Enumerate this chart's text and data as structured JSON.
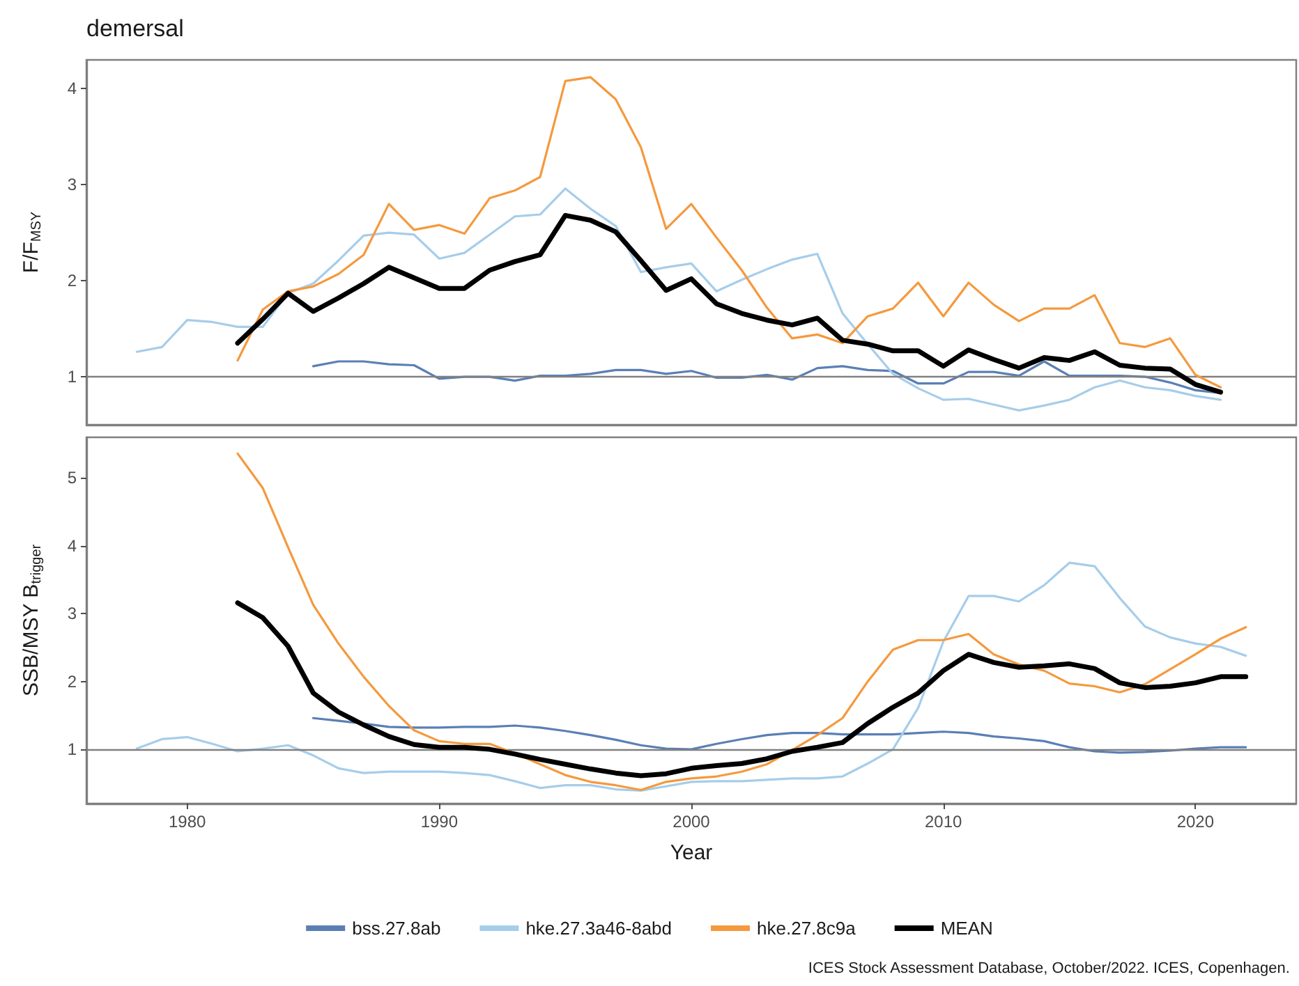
{
  "chart_data": [
    {
      "type": "line",
      "title": "demersal",
      "ylabel": "F/F$_{MSY}$",
      "xlim": [
        1976,
        2024
      ],
      "xticks": [
        1980,
        1990,
        2000,
        2010,
        2020
      ],
      "ylim": [
        0.5,
        4.3
      ],
      "yticks": [
        1,
        2,
        3,
        4
      ],
      "tick_labels": "y",
      "grid": false,
      "legend": false,
      "ref_lines": [
        {
          "axis": "y",
          "value": 1,
          "color": "#808080"
        }
      ],
      "series": [
        {
          "color": "#5a7fb5",
          "x": [
            1985,
            1986,
            1987,
            1988,
            1989,
            1990,
            1991,
            1992,
            1993,
            1994,
            1995,
            1996,
            1997,
            1998,
            1999,
            2000,
            2001,
            2002,
            2003,
            2004,
            2005,
            2006,
            2007,
            2008,
            2009,
            2010,
            2011,
            2012,
            2013,
            2014,
            2015,
            2016,
            2017,
            2018,
            2019,
            2020,
            2021
          ],
          "values": [
            1.11,
            1.16,
            1.16,
            1.13,
            1.12,
            0.98,
            1.0,
            1.0,
            0.96,
            1.01,
            1.01,
            1.03,
            1.07,
            1.07,
            1.03,
            1.06,
            0.99,
            0.99,
            1.02,
            0.97,
            1.09,
            1.11,
            1.07,
            1.06,
            0.93,
            0.93,
            1.05,
            1.05,
            1.01,
            1.16,
            1.01,
            1.01,
            1.01,
            1.0,
            0.94,
            0.86,
            0.83
          ]
        },
        {
          "color": "#a6cdea",
          "x": [
            1978,
            1979,
            1980,
            1981,
            1982,
            1983,
            1984,
            1985,
            1986,
            1987,
            1988,
            1989,
            1990,
            1991,
            1992,
            1993,
            1994,
            1995,
            1996,
            1997,
            1998,
            1999,
            2000,
            2001,
            2002,
            2003,
            2004,
            2005,
            2006,
            2007,
            2008,
            2009,
            2010,
            2011,
            2012,
            2013,
            2014,
            2015,
            2016,
            2017,
            2018,
            2019,
            2020,
            2021
          ],
          "values": [
            1.26,
            1.31,
            1.59,
            1.57,
            1.52,
            1.52,
            1.87,
            1.97,
            2.21,
            2.47,
            2.5,
            2.48,
            2.23,
            2.29,
            2.48,
            2.67,
            2.69,
            2.96,
            2.75,
            2.57,
            2.09,
            2.14,
            2.18,
            1.89,
            2.01,
            2.12,
            2.22,
            2.28,
            1.66,
            1.34,
            1.03,
            0.88,
            0.76,
            0.77,
            0.71,
            0.65,
            0.7,
            0.76,
            0.89,
            0.96,
            0.89,
            0.86,
            0.8,
            0.76
          ]
        },
        {
          "color": "#f5993d",
          "x": [
            1982,
            1983,
            1984,
            1985,
            1986,
            1987,
            1988,
            1989,
            1990,
            1991,
            1992,
            1993,
            1994,
            1995,
            1996,
            1997,
            1998,
            1999,
            2000,
            2001,
            2002,
            2003,
            2004,
            2005,
            2006,
            2007,
            2008,
            2009,
            2010,
            2011,
            2012,
            2013,
            2014,
            2015,
            2016,
            2017,
            2018,
            2019,
            2020,
            2021
          ],
          "values": [
            1.17,
            1.7,
            1.89,
            1.94,
            2.07,
            2.27,
            2.8,
            2.53,
            2.58,
            2.49,
            2.86,
            2.94,
            3.08,
            4.08,
            4.12,
            3.89,
            3.39,
            2.54,
            2.8,
            2.45,
            2.11,
            1.72,
            1.4,
            1.44,
            1.35,
            1.63,
            1.71,
            1.98,
            1.63,
            1.98,
            1.75,
            1.58,
            1.71,
            1.71,
            1.85,
            1.35,
            1.31,
            1.4,
            1.02,
            0.89
          ]
        },
        {
          "color": "#000000",
          "x": [
            1982,
            1983,
            1984,
            1985,
            1986,
            1987,
            1988,
            1989,
            1990,
            1991,
            1992,
            1993,
            1994,
            1995,
            1996,
            1997,
            1998,
            1999,
            2000,
            2001,
            2002,
            2003,
            2004,
            2005,
            2006,
            2007,
            2008,
            2009,
            2010,
            2011,
            2012,
            2013,
            2014,
            2015,
            2016,
            2017,
            2018,
            2019,
            2020,
            2021
          ],
          "values": [
            1.35,
            1.6,
            1.87,
            1.68,
            1.82,
            1.97,
            2.14,
            2.03,
            1.92,
            1.92,
            2.11,
            2.2,
            2.27,
            2.68,
            2.63,
            2.51,
            2.21,
            1.9,
            2.02,
            1.76,
            1.66,
            1.59,
            1.54,
            1.61,
            1.38,
            1.34,
            1.27,
            1.27,
            1.11,
            1.28,
            1.18,
            1.09,
            1.2,
            1.17,
            1.26,
            1.12,
            1.09,
            1.08,
            0.92,
            0.84
          ]
        }
      ]
    },
    {
      "type": "line",
      "xlabel": "Year",
      "ylabel": "SSB/MSY B$_{trigger}$",
      "xlim": [
        1976,
        2024
      ],
      "xticks": [
        1980,
        1990,
        2000,
        2010,
        2020
      ],
      "ylim": [
        0.2,
        5.6
      ],
      "yticks": [
        1,
        2,
        3,
        4,
        5
      ],
      "grid": false,
      "legend": "bottom",
      "ref_lines": [
        {
          "axis": "y",
          "value": 1,
          "color": "#808080"
        }
      ],
      "annotations": [
        "ICES Stock Assessment Database, October/2022. ICES, Copenhagen."
      ],
      "series": [
        {
          "name": "bss.27.8ab",
          "color": "#5a7fb5",
          "x": [
            1985,
            1986,
            1987,
            1988,
            1989,
            1990,
            1991,
            1992,
            1993,
            1994,
            1995,
            1996,
            1997,
            1998,
            1999,
            2000,
            2001,
            2002,
            2003,
            2004,
            2005,
            2006,
            2007,
            2008,
            2009,
            2010,
            2011,
            2012,
            2013,
            2014,
            2015,
            2016,
            2017,
            2018,
            2019,
            2020,
            2021,
            2022
          ],
          "values": [
            1.46,
            1.42,
            1.38,
            1.33,
            1.32,
            1.32,
            1.33,
            1.33,
            1.35,
            1.32,
            1.27,
            1.21,
            1.14,
            1.06,
            1.01,
            1.0,
            1.08,
            1.15,
            1.21,
            1.24,
            1.24,
            1.22,
            1.22,
            1.22,
            1.24,
            1.26,
            1.24,
            1.19,
            1.16,
            1.12,
            1.03,
            0.97,
            0.95,
            0.96,
            0.98,
            1.01,
            1.03,
            1.03
          ]
        },
        {
          "name": "hke.27.3a46-8abd",
          "color": "#a6cdea",
          "x": [
            1978,
            1979,
            1980,
            1981,
            1982,
            1983,
            1984,
            1985,
            1986,
            1987,
            1988,
            1989,
            1990,
            1991,
            1992,
            1993,
            1994,
            1995,
            1996,
            1997,
            1998,
            2000,
            2001,
            2002,
            2003,
            2004,
            2005,
            2006,
            2007,
            2008,
            2009,
            2010,
            2011,
            2012,
            2013,
            2014,
            2015,
            2016,
            2017,
            2018,
            2019,
            2020,
            2021,
            2022
          ],
          "values": [
            1.01,
            1.15,
            1.18,
            1.08,
            0.97,
            1.01,
            1.06,
            0.91,
            0.72,
            0.65,
            0.67,
            0.67,
            0.67,
            0.65,
            0.62,
            0.53,
            0.43,
            0.47,
            0.47,
            0.41,
            0.39,
            0.52,
            0.53,
            0.53,
            0.55,
            0.57,
            0.57,
            0.6,
            0.79,
            1.0,
            1.61,
            2.59,
            3.26,
            3.26,
            3.18,
            3.42,
            3.75,
            3.7,
            3.23,
            2.81,
            2.65,
            2.56,
            2.51,
            2.38
          ]
        },
        {
          "name": "hke.27.8c9a",
          "color": "#f5993d",
          "x": [
            1982,
            1983,
            1984,
            1985,
            1986,
            1987,
            1988,
            1989,
            1990,
            1991,
            1992,
            1993,
            1994,
            1995,
            1996,
            1997,
            1998,
            1999,
            2000,
            2001,
            2002,
            2003,
            2004,
            2005,
            2006,
            2007,
            2008,
            2009,
            2010,
            2011,
            2012,
            2013,
            2014,
            2015,
            2016,
            2017,
            2018,
            2019,
            2020,
            2021,
            2022
          ],
          "values": [
            5.36,
            4.85,
            3.98,
            3.13,
            2.56,
            2.07,
            1.64,
            1.28,
            1.12,
            1.08,
            1.08,
            0.94,
            0.78,
            0.62,
            0.52,
            0.47,
            0.4,
            0.52,
            0.57,
            0.6,
            0.67,
            0.78,
            0.99,
            1.21,
            1.46,
            2.0,
            2.47,
            2.61,
            2.61,
            2.7,
            2.4,
            2.25,
            2.16,
            1.97,
            1.93,
            1.84,
            1.96,
            2.18,
            2.4,
            2.63,
            2.8
          ]
        },
        {
          "name": "MEAN",
          "color": "#000000",
          "x": [
            1982,
            1983,
            1984,
            1985,
            1986,
            1987,
            1988,
            1989,
            1990,
            1991,
            1992,
            1993,
            1994,
            1995,
            1996,
            1997,
            1998,
            1999,
            2000,
            2001,
            2002,
            2003,
            2004,
            2005,
            2006,
            2007,
            2008,
            2009,
            2010,
            2011,
            2012,
            2013,
            2014,
            2015,
            2016,
            2017,
            2018,
            2019,
            2020,
            2021,
            2022
          ],
          "values": [
            3.16,
            2.94,
            2.52,
            1.83,
            1.55,
            1.36,
            1.19,
            1.07,
            1.03,
            1.03,
            1.0,
            0.93,
            0.85,
            0.78,
            0.71,
            0.65,
            0.61,
            0.64,
            0.72,
            0.76,
            0.79,
            0.86,
            0.97,
            1.03,
            1.1,
            1.38,
            1.62,
            1.83,
            2.16,
            2.4,
            2.28,
            2.21,
            2.23,
            2.26,
            2.19,
            1.98,
            1.91,
            1.93,
            1.98,
            2.07,
            2.07
          ]
        }
      ]
    }
  ]
}
